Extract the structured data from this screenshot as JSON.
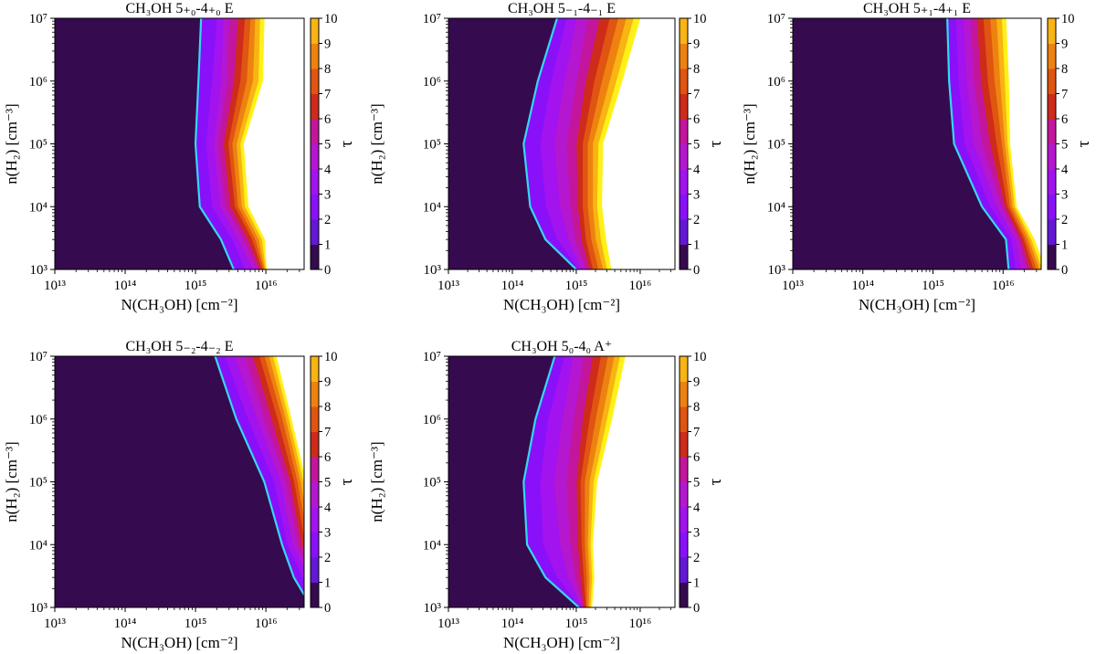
{
  "colors": {
    "levels": [
      "#360a4f",
      "#6418d6",
      "#8a10fa",
      "#a213ef",
      "#b517d0",
      "#c3169c",
      "#cf2b1a",
      "#df5511",
      "#ee8210",
      "#f8b413",
      "#fff118"
    ],
    "boundary_line": "#33d9f0",
    "axis": "#000000"
  },
  "chart_data": [
    {
      "type": "contour",
      "title": "CH₃OH 5₊₀-4₊₀ E",
      "xlabel": "N(CH₃OH) [cm⁻²]",
      "ylabel": "n(H₂) [cm⁻³]",
      "colorbar_label": "τ",
      "x_scale": "log",
      "y_scale": "log",
      "xlim": [
        10000000000000.0,
        3.5e+16
      ],
      "ylim": [
        1000.0,
        10000000.0
      ],
      "x_ticks": [
        "10¹³",
        "10¹⁴",
        "10¹⁵",
        "10¹⁶"
      ],
      "y_ticks": [
        "10³",
        "10⁴",
        "10⁵",
        "10⁶",
        "10⁷"
      ],
      "colorbar_ticks": [
        "0",
        "1",
        "2",
        "3",
        "4",
        "5",
        "6",
        "7",
        "8",
        "9",
        "10"
      ],
      "levels": [
        0,
        1,
        2,
        3,
        4,
        5,
        6,
        7,
        8,
        9,
        10
      ],
      "tau_levels": [
        1,
        2,
        3,
        4,
        5,
        6,
        7,
        8,
        9,
        10
      ],
      "density_grid": [
        1000.0,
        3000.0,
        10000.0,
        100000.0,
        1000000.0,
        10000000.0
      ],
      "tau_contours_column_density": [
        [
          3500000000000000.0,
          2300000000000000.0,
          1150000000000000.0,
          1000000000000000.0,
          1100000000000000.0,
          1200000000000000.0
        ],
        [
          5000000000000000.0,
          3300000000000000.0,
          1700000000000000.0,
          1400000000000000.0,
          1700000000000000.0,
          2000000000000000.0
        ],
        [
          6500000000000000.0,
          4000000000000000.0,
          2200000000000000.0,
          1800000000000000.0,
          2300000000000000.0,
          2500000000000000.0
        ],
        [
          7500000000000000.0,
          4800000000000000.0,
          2600000000000000.0,
          2100000000000000.0,
          2800000000000000.0,
          3000000000000000.0
        ],
        [
          8300000000000000.0,
          5500000000000000.0,
          3100000000000000.0,
          2500000000000000.0,
          3500000000000000.0,
          4000000000000000.0
        ],
        [
          8800000000000000.0,
          6300000000000000.0,
          3600000000000000.0,
          2900000000000000.0,
          4300000000000000.0,
          5000000000000000.0
        ],
        [
          9300000000000000.0,
          7000000000000000.0,
          4000000000000000.0,
          3300000000000000.0,
          5300000000000000.0,
          6000000000000000.0
        ],
        [
          9600000000000000.0,
          7800000000000000.0,
          4500000000000000.0,
          3800000000000000.0,
          6500000000000000.0,
          7000000000000000.0
        ],
        [
          9900000000000000.0,
          8700000000000000.0,
          5000000000000000.0,
          4300000000000000.0,
          7800000000000000.0,
          8200000000000000.0
        ],
        [
          1.02e+16,
          9600000000000000.0,
          5600000000000000.0,
          4800000000000000.0,
          9000000000000000.0,
          9500000000000000.0
        ]
      ]
    },
    {
      "type": "contour",
      "title": "CH₃OH 5₋₁-4₋₁ E",
      "xlabel": "N(CH₃OH) [cm⁻²]",
      "ylabel": "n(H₂) [cm⁻³]",
      "colorbar_label": "τ",
      "x_scale": "log",
      "y_scale": "log",
      "xlim": [
        10000000000000.0,
        3.5e+16
      ],
      "ylim": [
        1000.0,
        10000000.0
      ],
      "x_ticks": [
        "10¹³",
        "10¹⁴",
        "10¹⁵",
        "10¹⁶"
      ],
      "y_ticks": [
        "10³",
        "10⁴",
        "10⁵",
        "10⁶",
        "10⁷"
      ],
      "colorbar_ticks": [
        "0",
        "1",
        "2",
        "3",
        "4",
        "5",
        "6",
        "7",
        "8",
        "9",
        "10"
      ],
      "levels": [
        0,
        1,
        2,
        3,
        4,
        5,
        6,
        7,
        8,
        9,
        10
      ],
      "tau_levels": [
        1,
        2,
        3,
        4,
        5,
        6,
        7,
        8,
        9,
        10
      ],
      "density_grid": [
        1000.0,
        3000.0,
        10000.0,
        100000.0,
        1000000.0,
        10000000.0
      ],
      "tau_contours_column_density": [
        [
          1000000000000000.0,
          330000000000000.0,
          190000000000000.0,
          150000000000000.0,
          250000000000000.0,
          500000000000000.0
        ],
        [
          1100000000000000.0,
          500000000000000.0,
          330000000000000.0,
          270000000000000.0,
          400000000000000.0,
          700000000000000.0
        ],
        [
          1200000000000000.0,
          750000000000000.0,
          550000000000000.0,
          450000000000000.0,
          650000000000000.0,
          1000000000000000.0
        ],
        [
          1400000000000000.0,
          950000000000000.0,
          800000000000000.0,
          700000000000000.0,
          1000000000000000.0,
          1500000000000000.0
        ],
        [
          1600000000000000.0,
          1200000000000000.0,
          1050000000000000.0,
          1000000000000000.0,
          1400000000000000.0,
          2300000000000000.0
        ],
        [
          1800000000000000.0,
          1400000000000000.0,
          1250000000000000.0,
          1250000000000000.0,
          1900000000000000.0,
          3300000000000000.0
        ],
        [
          2200000000000000.0,
          1700000000000000.0,
          1500000000000000.0,
          1500000000000000.0,
          2500000000000000.0,
          4500000000000000.0
        ],
        [
          2600000000000000.0,
          2000000000000000.0,
          1800000000000000.0,
          1800000000000000.0,
          3300000000000000.0,
          6000000000000000.0
        ],
        [
          3000000000000000.0,
          2400000000000000.0,
          2100000000000000.0,
          2200000000000000.0,
          4200000000000000.0,
          7800000000000000.0
        ],
        [
          3500000000000000.0,
          2900000000000000.0,
          2500000000000000.0,
          2600000000000000.0,
          5200000000000000.0,
          1e+16
        ]
      ]
    },
    {
      "type": "contour",
      "title": "CH₃OH 5₊₁-4₊₁ E",
      "xlabel": "N(CH₃OH) [cm⁻²]",
      "ylabel": "n(H₂) [cm⁻³]",
      "colorbar_label": "τ",
      "x_scale": "log",
      "y_scale": "log",
      "xlim": [
        10000000000000.0,
        3.5e+16
      ],
      "ylim": [
        1000.0,
        10000000.0
      ],
      "x_ticks": [
        "10¹³",
        "10¹⁴",
        "10¹⁵",
        "10¹⁶"
      ],
      "y_ticks": [
        "10³",
        "10⁴",
        "10⁵",
        "10⁶",
        "10⁷"
      ],
      "colorbar_ticks": [
        "0",
        "1",
        "2",
        "3",
        "4",
        "5",
        "6",
        "7",
        "8",
        "9",
        "10"
      ],
      "levels": [
        0,
        1,
        2,
        3,
        4,
        5,
        6,
        7,
        8,
        9,
        10
      ],
      "tau_levels": [
        1,
        2,
        3,
        4,
        5,
        6,
        7,
        8,
        9,
        10
      ],
      "density_grid": [
        1000.0,
        3000.0,
        10000.0,
        100000.0,
        1000000.0,
        10000000.0
      ],
      "tau_contours_column_density": [
        [
          1.2e+16,
          1.1e+16,
          5000000000000000.0,
          2000000000000000.0,
          1700000000000000.0,
          1600000000000000.0
        ],
        [
          1.5e+16,
          1.3e+16,
          6500000000000000.0,
          2800000000000000.0,
          2300000000000000.0,
          2100000000000000.0
        ],
        [
          1.8e+16,
          1.5e+16,
          8000000000000000.0,
          3800000000000000.0,
          3000000000000000.0,
          2700000000000000.0
        ],
        [
          2.1e+16,
          1.65e+16,
          9500000000000000.0,
          5000000000000000.0,
          3800000000000000.0,
          3400000000000000.0
        ],
        [
          2.4e+16,
          1.8e+16,
          1.05e+16,
          6500000000000000.0,
          4800000000000000.0,
          4200000000000000.0
        ],
        [
          2.7e+16,
          1.95e+16,
          1.15e+16,
          8000000000000000.0,
          6000000000000000.0,
          5200000000000000.0
        ],
        [
          3e+16,
          2.1e+16,
          1.25e+16,
          9500000000000000.0,
          7500000000000000.0,
          6500000000000000.0
        ],
        [
          3.3e+16,
          2.3e+16,
          1.35e+16,
          1.05e+16,
          9000000000000000.0,
          8000000000000000.0
        ],
        [
          3.6e+16,
          2.5e+16,
          1.45e+16,
          1.15e+16,
          1.05e+16,
          9500000000000000.0
        ],
        [
          4e+16,
          2.8e+16,
          1.55e+16,
          1.25e+16,
          1.2e+16,
          1.1e+16
        ]
      ]
    },
    {
      "type": "contour",
      "title": "CH₃OH 5₋₂-4₋₂ E",
      "xlabel": "N(CH₃OH) [cm⁻²]",
      "ylabel": "n(H₂) [cm⁻³]",
      "colorbar_label": "τ",
      "x_scale": "log",
      "y_scale": "log",
      "xlim": [
        10000000000000.0,
        3.5e+16
      ],
      "ylim": [
        1000.0,
        10000000.0
      ],
      "x_ticks": [
        "10¹³",
        "10¹⁴",
        "10¹⁵",
        "10¹⁶"
      ],
      "y_ticks": [
        "10³",
        "10⁴",
        "10⁵",
        "10⁶",
        "10⁷"
      ],
      "colorbar_ticks": [
        "0",
        "1",
        "2",
        "3",
        "4",
        "5",
        "6",
        "7",
        "8",
        "9",
        "10"
      ],
      "levels": [
        0,
        1,
        2,
        3,
        4,
        5,
        6,
        7,
        8,
        9,
        10
      ],
      "tau_levels": [
        1,
        2,
        3,
        4,
        5,
        6,
        7,
        8,
        9,
        10
      ],
      "density_grid": [
        1000.0,
        3000.0,
        10000.0,
        100000.0,
        1000000.0,
        10000000.0
      ],
      "tau_contours_column_density": [
        [
          4.5e+16,
          2.5e+16,
          1.7e+16,
          9500000000000000.0,
          3800000000000000.0,
          1900000000000000.0
        ],
        [
          5.2e+16,
          3.3e+16,
          2e+16,
          1.3e+16,
          5500000000000000.0,
          2600000000000000.0
        ],
        [
          6e+16,
          4e+16,
          2.4e+16,
          1.6e+16,
          7500000000000000.0,
          3600000000000000.0
        ],
        [
          6.8e+16,
          4.6e+16,
          2.8e+16,
          1.9e+16,
          9500000000000000.0,
          5000000000000000.0
        ],
        [
          7.6e+16,
          5.2e+16,
          3.2e+16,
          2.2e+16,
          1.2e+16,
          6500000000000000.0
        ],
        [
          8.4e+16,
          5.8e+16,
          3.6e+16,
          2.5e+16,
          1.45e+16,
          8000000000000000.0
        ],
        [
          9.2e+16,
          6.4e+16,
          4e+16,
          2.8e+16,
          1.7e+16,
          9500000000000000.0
        ],
        [
          1e+17,
          7e+16,
          4.4e+16,
          3.1e+16,
          1.9e+16,
          1.1e+16
        ],
        [
          1.1e+17,
          7.6e+16,
          4.8e+16,
          3.4e+16,
          2.1e+16,
          1.25e+16
        ],
        [
          1.2e+17,
          8.2e+16,
          5.2e+16,
          3.7e+16,
          2.3e+16,
          1.4e+16
        ]
      ]
    },
    {
      "type": "contour",
      "title": "CH₃OH 5₀-4₀ A⁺",
      "xlabel": "N(CH₃OH) [cm⁻²]",
      "ylabel": "n(H₂) [cm⁻³]",
      "colorbar_label": "τ",
      "x_scale": "log",
      "y_scale": "log",
      "xlim": [
        10000000000000.0,
        3.5e+16
      ],
      "ylim": [
        1000.0,
        10000000.0
      ],
      "x_ticks": [
        "10¹³",
        "10¹⁴",
        "10¹⁵",
        "10¹⁶"
      ],
      "y_ticks": [
        "10³",
        "10⁴",
        "10⁵",
        "10⁶",
        "10⁷"
      ],
      "colorbar_ticks": [
        "0",
        "1",
        "2",
        "3",
        "4",
        "5",
        "6",
        "7",
        "8",
        "9",
        "10"
      ],
      "levels": [
        0,
        1,
        2,
        3,
        4,
        5,
        6,
        7,
        8,
        9,
        10
      ],
      "tau_levels": [
        1,
        2,
        3,
        4,
        5,
        6,
        7,
        8,
        9,
        10
      ],
      "density_grid": [
        1000.0,
        3000.0,
        10000.0,
        100000.0,
        1000000.0,
        10000000.0
      ],
      "tau_contours_column_density": [
        [
          1100000000000000.0,
          330000000000000.0,
          170000000000000.0,
          150000000000000.0,
          230000000000000.0,
          460000000000000.0
        ],
        [
          1150000000000000.0,
          500000000000000.0,
          300000000000000.0,
          270000000000000.0,
          360000000000000.0,
          650000000000000.0
        ],
        [
          1200000000000000.0,
          750000000000000.0,
          550000000000000.0,
          450000000000000.0,
          600000000000000.0,
          900000000000000.0
        ],
        [
          1250000000000000.0,
          950000000000000.0,
          800000000000000.0,
          700000000000000.0,
          900000000000000.0,
          1300000000000000.0
        ],
        [
          1300000000000000.0,
          1150000000000000.0,
          1050000000000000.0,
          1000000000000000.0,
          1250000000000000.0,
          1800000000000000.0
        ],
        [
          1400000000000000.0,
          1300000000000000.0,
          1200000000000000.0,
          1150000000000000.0,
          1600000000000000.0,
          2400000000000000.0
        ],
        [
          1450000000000000.0,
          1450000000000000.0,
          1350000000000000.0,
          1350000000000000.0,
          2000000000000000.0,
          3100000000000000.0
        ],
        [
          1550000000000000.0,
          1600000000000000.0,
          1500000000000000.0,
          1600000000000000.0,
          2500000000000000.0,
          3900000000000000.0
        ],
        [
          1650000000000000.0,
          1750000000000000.0,
          1650000000000000.0,
          1850000000000000.0,
          3000000000000000.0,
          4800000000000000.0
        ],
        [
          1750000000000000.0,
          1900000000000000.0,
          1800000000000000.0,
          2100000000000000.0,
          3600000000000000.0,
          5800000000000000.0
        ]
      ]
    }
  ]
}
